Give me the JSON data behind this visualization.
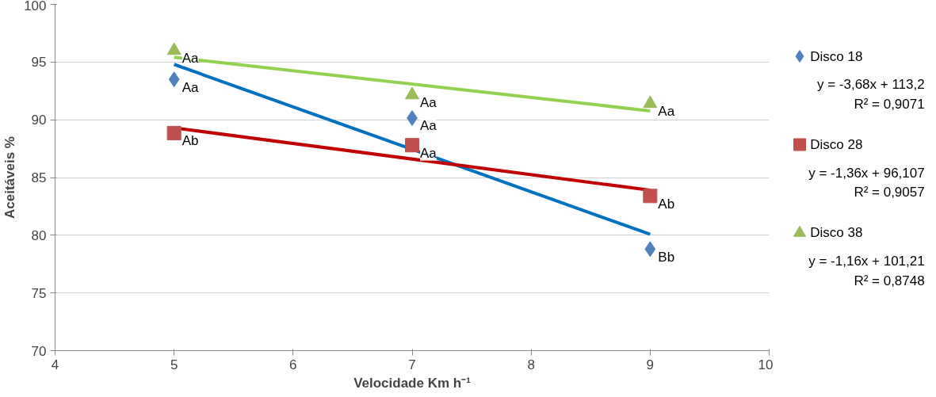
{
  "chart_data": {
    "type": "scatter",
    "xlabel": "Velocidade Km h⁻¹",
    "ylabel": "Aceitáveis %",
    "xlim": [
      4,
      10
    ],
    "ylim": [
      70,
      100
    ],
    "xticks": [
      4,
      5,
      6,
      7,
      8,
      9,
      10
    ],
    "yticks": [
      70,
      75,
      80,
      85,
      90,
      95,
      100
    ],
    "grid": "y",
    "legend": "right",
    "series": [
      {
        "name": "Disco 18",
        "marker": "diamond",
        "color": "#4f81bd",
        "x": [
          5,
          7,
          9
        ],
        "values": [
          93.5,
          90.15,
          78.8
        ]
      },
      {
        "name": "Disco 28",
        "marker": "square",
        "color": "#c0504d",
        "x": [
          5,
          7,
          9
        ],
        "values": [
          88.85,
          87.8,
          83.4
        ]
      },
      {
        "name": "Disco 38",
        "marker": "triangle",
        "color": "#9bbb59",
        "x": [
          5,
          7,
          9
        ],
        "values": [
          96.0,
          92.15,
          91.4
        ]
      },
      {
        "type": "line",
        "color": "#0070c0",
        "x": [
          5,
          9
        ],
        "values": [
          94.8,
          80.08
        ]
      },
      {
        "type": "line",
        "color": "#c00000",
        "x": [
          5,
          9
        ],
        "values": [
          89.3,
          83.9
        ]
      },
      {
        "type": "line",
        "color": "#92d050",
        "x": [
          5,
          9
        ],
        "values": [
          95.41,
          90.77
        ]
      }
    ],
    "annotations": [
      "y = -3,68x + 113,2\nR² = 0,9071",
      "y = -1,36x + 96,107\nR² = 0,9057",
      "y = -1,16x + 101,21\nR² = 0,8748",
      {
        "text": "Aa",
        "x": 5,
        "y": 93.5
      },
      {
        "text": "Aa",
        "x": 7,
        "y": 90.15
      },
      {
        "text": "Bb",
        "x": 9,
        "y": 78.8
      },
      {
        "text": "Ab",
        "x": 5,
        "y": 88.85
      },
      {
        "text": "Aa",
        "x": 7,
        "y": 87.8
      },
      {
        "text": "Ab",
        "x": 9,
        "y": 83.4
      },
      {
        "text": "Aa",
        "x": 5,
        "y": 96.0
      },
      {
        "text": "Aa",
        "x": 7,
        "y": 92.15
      },
      {
        "text": "Aa",
        "x": 9,
        "y": 91.4
      }
    ]
  }
}
